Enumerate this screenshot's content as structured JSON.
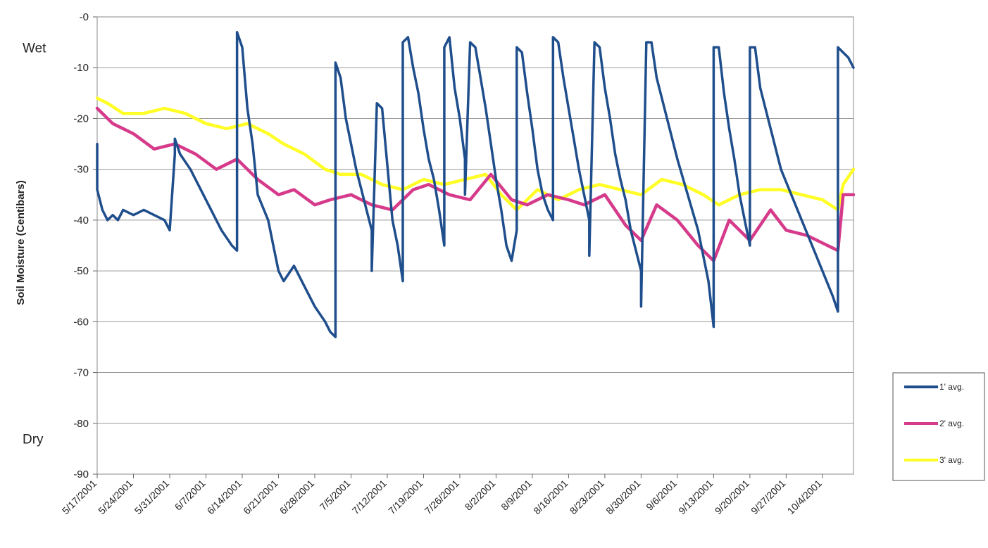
{
  "chart_data": {
    "type": "line",
    "title": "",
    "xlabel": "",
    "ylabel": "Soil Moisture (Centibars)",
    "ylim": [
      -90,
      0
    ],
    "yticks": [
      0,
      -10,
      -20,
      -30,
      -40,
      -50,
      -60,
      -70,
      -80,
      -90
    ],
    "ytick_labels": [
      "-0",
      "-10",
      "-20",
      "-30",
      "-40",
      "-50",
      "-60",
      "-70",
      "-80",
      "-90"
    ],
    "xlim": [
      "2001-05-17",
      "2001-10-10"
    ],
    "x_ticks": [
      "2001-05-17",
      "2001-05-24",
      "2001-05-31",
      "2001-06-07",
      "2001-06-14",
      "2001-06-21",
      "2001-06-28",
      "2001-07-05",
      "2001-07-12",
      "2001-07-19",
      "2001-07-26",
      "2001-08-02",
      "2001-08-09",
      "2001-08-16",
      "2001-08-23",
      "2001-08-30",
      "2001-09-06",
      "2001-09-13",
      "2001-09-20",
      "2001-09-27",
      "2001-10-04"
    ],
    "x_tick_labels": [
      "5/17/2001",
      "5/24/2001",
      "5/31/2001",
      "6/7/2001",
      "6/14/2001",
      "6/21/2001",
      "6/28/2001",
      "7/5/2001",
      "7/12/2001",
      "7/19/2001",
      "7/26/2001",
      "8/2/2001",
      "8/9/2001",
      "8/16/2001",
      "8/23/2001",
      "8/30/2001",
      "9/6/2001",
      "9/13/2001",
      "9/20/2001",
      "9/27/2001",
      "10/4/2001"
    ],
    "annotations": [
      {
        "text": "Wet",
        "y": -6
      },
      {
        "text": "Dry",
        "y": -83
      }
    ],
    "grid": true,
    "legend_position": "right",
    "series": [
      {
        "name": "1' avg.",
        "color": "#1f4e8c",
        "x": [
          "2001-05-17",
          "2001-05-17",
          "2001-05-18",
          "2001-05-19",
          "2001-05-20",
          "2001-05-21",
          "2001-05-22",
          "2001-05-24",
          "2001-05-26",
          "2001-05-28",
          "2001-05-30",
          "2001-05-31",
          "2001-06-01",
          "2001-06-01",
          "2001-06-02",
          "2001-06-04",
          "2001-06-06",
          "2001-06-08",
          "2001-06-10",
          "2001-06-12",
          "2001-06-13",
          "2001-06-13",
          "2001-06-14",
          "2001-06-15",
          "2001-06-16",
          "2001-06-17",
          "2001-06-19",
          "2001-06-20",
          "2001-06-21",
          "2001-06-22",
          "2001-06-24",
          "2001-06-26",
          "2001-06-28",
          "2001-06-30",
          "2001-07-01",
          "2001-07-02",
          "2001-07-02",
          "2001-07-03",
          "2001-07-04",
          "2001-07-05",
          "2001-07-06",
          "2001-07-07",
          "2001-07-08",
          "2001-07-09",
          "2001-07-09",
          "2001-07-10",
          "2001-07-11",
          "2001-07-12",
          "2001-07-13",
          "2001-07-14",
          "2001-07-15",
          "2001-07-15",
          "2001-07-16",
          "2001-07-17",
          "2001-07-18",
          "2001-07-19",
          "2001-07-20",
          "2001-07-21",
          "2001-07-22",
          "2001-07-23",
          "2001-07-23",
          "2001-07-24",
          "2001-07-25",
          "2001-07-26",
          "2001-07-27",
          "2001-07-27",
          "2001-07-28",
          "2001-07-29",
          "2001-07-30",
          "2001-07-31",
          "2001-08-01",
          "2001-08-02",
          "2001-08-03",
          "2001-08-04",
          "2001-08-05",
          "2001-08-06",
          "2001-08-06",
          "2001-08-07",
          "2001-08-08",
          "2001-08-09",
          "2001-08-10",
          "2001-08-11",
          "2001-08-12",
          "2001-08-13",
          "2001-08-13",
          "2001-08-14",
          "2001-08-15",
          "2001-08-16",
          "2001-08-17",
          "2001-08-18",
          "2001-08-19",
          "2001-08-20",
          "2001-08-20",
          "2001-08-21",
          "2001-08-22",
          "2001-08-23",
          "2001-08-24",
          "2001-08-25",
          "2001-08-26",
          "2001-08-27",
          "2001-08-28",
          "2001-08-30",
          "2001-08-30",
          "2001-08-31",
          "2001-09-01",
          "2001-09-02",
          "2001-09-04",
          "2001-09-06",
          "2001-09-08",
          "2001-09-10",
          "2001-09-12",
          "2001-09-13",
          "2001-09-13",
          "2001-09-14",
          "2001-09-15",
          "2001-09-16",
          "2001-09-17",
          "2001-09-18",
          "2001-09-19",
          "2001-09-20",
          "2001-09-20",
          "2001-09-21",
          "2001-09-22",
          "2001-09-24",
          "2001-09-26",
          "2001-09-28",
          "2001-09-30",
          "2001-10-02",
          "2001-10-04",
          "2001-10-06",
          "2001-10-07",
          "2001-10-07",
          "2001-10-08",
          "2001-10-09",
          "2001-10-10"
        ],
        "y": [
          -25,
          -34,
          -38,
          -40,
          -39,
          -40,
          -38,
          -39,
          -38,
          -39,
          -40,
          -42,
          -27,
          -24,
          -27,
          -30,
          -34,
          -38,
          -42,
          -45,
          -46,
          -3,
          -6,
          -18,
          -25,
          -35,
          -40,
          -45,
          -50,
          -52,
          -49,
          -53,
          -57,
          -60,
          -62,
          -63,
          -9,
          -12,
          -20,
          -25,
          -30,
          -34,
          -38,
          -42,
          -50,
          -17,
          -18,
          -29,
          -40,
          -45,
          -52,
          -5,
          -4,
          -10,
          -15,
          -22,
          -28,
          -32,
          -38,
          -45,
          -6,
          -4,
          -14,
          -20,
          -28,
          -35,
          -5,
          -6,
          -12,
          -18,
          -25,
          -32,
          -38,
          -45,
          -48,
          -42,
          -6,
          -7,
          -15,
          -22,
          -30,
          -35,
          -38,
          -40,
          -4,
          -5,
          -12,
          -18,
          -24,
          -30,
          -35,
          -40,
          -47,
          -5,
          -6,
          -14,
          -20,
          -27,
          -32,
          -36,
          -42,
          -50,
          -57,
          -5,
          -5,
          -12,
          -20,
          -28,
          -35,
          -42,
          -52,
          -61,
          -6,
          -6,
          -15,
          -22,
          -28,
          -35,
          -40,
          -45,
          -6,
          -6,
          -14,
          -22,
          -30,
          -35,
          -40,
          -45,
          -50,
          -55,
          -58,
          -6,
          -7,
          -8,
          -10
        ]
      },
      {
        "name": "2' avg.",
        "color": "#d63a8a",
        "x": [
          "2001-05-17",
          "2001-05-20",
          "2001-05-24",
          "2001-05-28",
          "2001-06-01",
          "2001-06-05",
          "2001-06-09",
          "2001-06-13",
          "2001-06-17",
          "2001-06-21",
          "2001-06-24",
          "2001-06-28",
          "2001-07-01",
          "2001-07-05",
          "2001-07-09",
          "2001-07-13",
          "2001-07-17",
          "2001-07-20",
          "2001-07-24",
          "2001-07-28",
          "2001-08-01",
          "2001-08-05",
          "2001-08-08",
          "2001-08-12",
          "2001-08-16",
          "2001-08-19",
          "2001-08-23",
          "2001-08-27",
          "2001-08-30",
          "2001-09-02",
          "2001-09-06",
          "2001-09-10",
          "2001-09-13",
          "2001-09-16",
          "2001-09-20",
          "2001-09-24",
          "2001-09-27",
          "2001-10-01",
          "2001-10-05",
          "2001-10-07",
          "2001-10-08",
          "2001-10-10"
        ],
        "y": [
          -18,
          -21,
          -23,
          -26,
          -25,
          -27,
          -30,
          -28,
          -32,
          -35,
          -34,
          -37,
          -36,
          -35,
          -37,
          -38,
          -34,
          -33,
          -35,
          -36,
          -31,
          -36,
          -37,
          -35,
          -36,
          -37,
          -35,
          -41,
          -44,
          -37,
          -40,
          -45,
          -48,
          -40,
          -44,
          -38,
          -42,
          -43,
          -45,
          -46,
          -35,
          -35
        ]
      },
      {
        "name": "3' avg.",
        "color": "#ffff26",
        "x": [
          "2001-05-17",
          "2001-05-19",
          "2001-05-22",
          "2001-05-26",
          "2001-05-30",
          "2001-06-03",
          "2001-06-07",
          "2001-06-11",
          "2001-06-15",
          "2001-06-19",
          "2001-06-22",
          "2001-06-26",
          "2001-06-30",
          "2001-07-03",
          "2001-07-07",
          "2001-07-11",
          "2001-07-15",
          "2001-07-19",
          "2001-07-23",
          "2001-07-27",
          "2001-07-31",
          "2001-08-03",
          "2001-08-06",
          "2001-08-10",
          "2001-08-14",
          "2001-08-18",
          "2001-08-22",
          "2001-08-26",
          "2001-08-30",
          "2001-09-03",
          "2001-09-07",
          "2001-09-11",
          "2001-09-14",
          "2001-09-18",
          "2001-09-22",
          "2001-09-26",
          "2001-09-30",
          "2001-10-04",
          "2001-10-07",
          "2001-10-08",
          "2001-10-10"
        ],
        "y": [
          -16,
          -17,
          -19,
          -19,
          -18,
          -19,
          -21,
          -22,
          -21,
          -23,
          -25,
          -27,
          -30,
          -31,
          -31,
          -33,
          -34,
          -32,
          -33,
          -32,
          -31,
          -35,
          -38,
          -34,
          -36,
          -34,
          -33,
          -34,
          -35,
          -32,
          -33,
          -35,
          -37,
          -35,
          -34,
          -34,
          -35,
          -36,
          -38,
          -33,
          -30
        ]
      }
    ]
  }
}
